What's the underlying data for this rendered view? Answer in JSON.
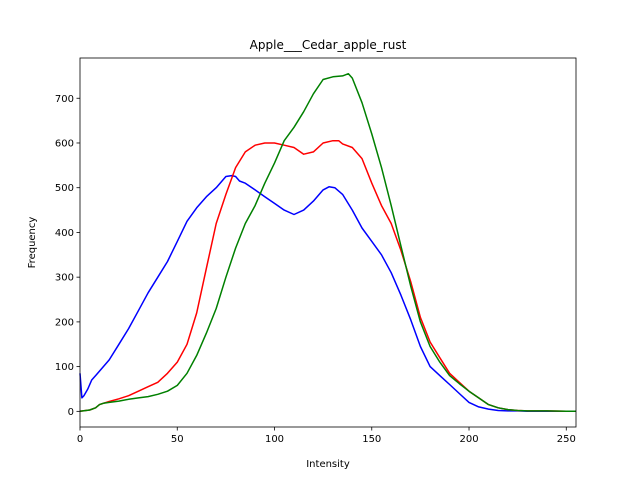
{
  "chart_data": {
    "type": "line",
    "title": "Apple___Cedar_apple_rust",
    "xlabel": "Intensity",
    "ylabel": "Frequency",
    "xlim": [
      0,
      255
    ],
    "ylim": [
      -35,
      790
    ],
    "xticks": [
      0,
      50,
      100,
      150,
      200,
      250
    ],
    "yticks": [
      0,
      100,
      200,
      300,
      400,
      500,
      600,
      700
    ],
    "grid": false,
    "legend": "none",
    "series": [
      {
        "name": "blue",
        "color": "#0000ff",
        "x": [
          0,
          1,
          2,
          4,
          6,
          8,
          10,
          15,
          20,
          25,
          30,
          35,
          40,
          45,
          50,
          55,
          60,
          65,
          70,
          75,
          78,
          80,
          82,
          85,
          90,
          95,
          100,
          105,
          110,
          115,
          120,
          125,
          128,
          131,
          135,
          140,
          145,
          150,
          155,
          160,
          165,
          170,
          175,
          180,
          185,
          190,
          195,
          200,
          205,
          210,
          215,
          220,
          225,
          230,
          240,
          250,
          255
        ],
        "values": [
          85,
          30,
          35,
          50,
          70,
          80,
          90,
          115,
          150,
          185,
          225,
          265,
          300,
          335,
          380,
          425,
          455,
          480,
          500,
          525,
          527,
          525,
          515,
          510,
          495,
          480,
          465,
          450,
          440,
          450,
          470,
          495,
          502,
          500,
          485,
          450,
          410,
          380,
          350,
          310,
          260,
          205,
          145,
          100,
          80,
          60,
          40,
          20,
          10,
          5,
          2,
          1,
          1,
          0,
          0,
          0,
          0
        ]
      },
      {
        "name": "red",
        "color": "#ff0000",
        "x": [
          0,
          5,
          8,
          10,
          12,
          15,
          20,
          25,
          30,
          35,
          40,
          45,
          50,
          55,
          60,
          65,
          70,
          75,
          80,
          85,
          90,
          95,
          100,
          105,
          110,
          115,
          120,
          125,
          130,
          133,
          135,
          140,
          145,
          150,
          155,
          160,
          165,
          170,
          175,
          180,
          185,
          190,
          195,
          200,
          205,
          210,
          215,
          220,
          225,
          230,
          240,
          250,
          255
        ],
        "values": [
          0,
          3,
          8,
          15,
          18,
          22,
          28,
          35,
          45,
          55,
          65,
          85,
          110,
          150,
          220,
          320,
          420,
          485,
          545,
          580,
          595,
          600,
          600,
          595,
          590,
          575,
          580,
          600,
          605,
          605,
          598,
          590,
          565,
          510,
          460,
          420,
          360,
          290,
          210,
          155,
          120,
          85,
          65,
          45,
          30,
          15,
          8,
          4,
          2,
          1,
          1,
          0,
          0
        ]
      },
      {
        "name": "green",
        "color": "#008000",
        "x": [
          0,
          5,
          8,
          10,
          12,
          15,
          20,
          25,
          30,
          35,
          40,
          45,
          50,
          55,
          60,
          65,
          70,
          75,
          80,
          85,
          90,
          95,
          100,
          105,
          110,
          115,
          120,
          125,
          130,
          135,
          138,
          140,
          145,
          150,
          155,
          160,
          165,
          170,
          175,
          180,
          185,
          190,
          195,
          200,
          205,
          210,
          215,
          220,
          225,
          230,
          240,
          250,
          255
        ],
        "values": [
          0,
          3,
          8,
          15,
          18,
          20,
          23,
          27,
          30,
          33,
          38,
          45,
          58,
          85,
          125,
          175,
          230,
          300,
          365,
          420,
          460,
          510,
          555,
          605,
          635,
          670,
          710,
          742,
          748,
          750,
          755,
          745,
          690,
          620,
          545,
          460,
          370,
          280,
          200,
          145,
          110,
          80,
          62,
          45,
          30,
          15,
          8,
          4,
          2,
          1,
          1,
          0,
          0
        ]
      }
    ]
  }
}
